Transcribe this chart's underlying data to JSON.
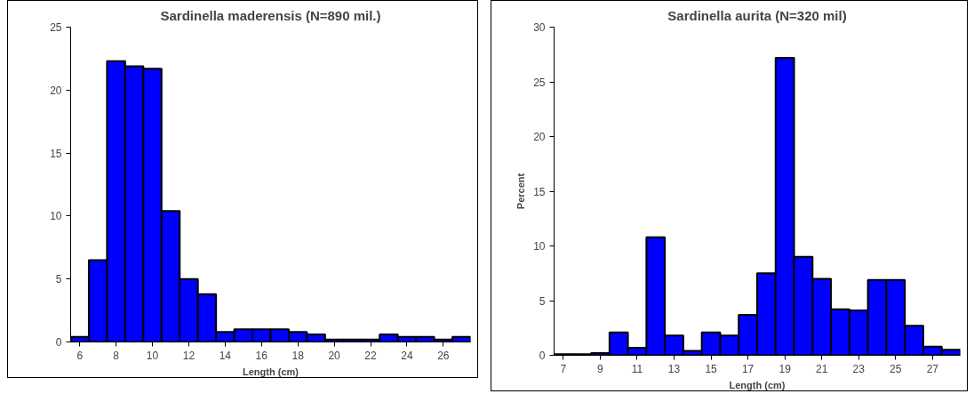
{
  "chart_data": [
    {
      "type": "histogram",
      "title": "Sardinella maderensis (N=890 mil.)",
      "xlabel": "Length (cm)",
      "color": "#0000ff",
      "bins": [
        5.5,
        6.5,
        7.5,
        8.5,
        9.5,
        10.5,
        11.5,
        12.5,
        13.5,
        14.5,
        15.5,
        16.5,
        17.5,
        18.5,
        19.5,
        20.5,
        21.5,
        22.5,
        23.5,
        24.5,
        25.5,
        26.5,
        27.5
      ],
      "values": [
        0.4,
        6.5,
        22.3,
        21.9,
        21.7,
        10.4,
        5.0,
        3.8,
        0.8,
        1.0,
        1.0,
        1.0,
        0.8,
        0.6,
        0.2,
        0.2,
        0.2,
        0.6,
        0.4,
        0.4,
        0.2,
        0.4
      ],
      "xlim": [
        5.5,
        27.5
      ],
      "xticks": [
        6,
        8,
        10,
        12,
        14,
        16,
        18,
        20,
        22,
        24,
        26
      ],
      "ylim": [
        0,
        25
      ],
      "yticks": [
        0,
        5,
        10,
        15,
        20,
        25
      ],
      "grid": false,
      "legend": false
    },
    {
      "type": "histogram",
      "title": "Sardinella aurita (N=320 mil)",
      "xlabel": "Length (cm)",
      "ylabel": "Percent",
      "color": "#0000ff",
      "bins": [
        6.5,
        7.5,
        8.5,
        9.5,
        10.5,
        11.5,
        12.5,
        13.5,
        14.5,
        15.5,
        16.5,
        17.5,
        18.5,
        19.5,
        20.5,
        21.5,
        22.5,
        23.5,
        24.5,
        25.5,
        26.5,
        27.5,
        28.5
      ],
      "values": [
        0.1,
        0.1,
        0.2,
        2.1,
        0.7,
        10.8,
        1.8,
        0.4,
        2.1,
        1.8,
        3.7,
        7.5,
        27.2,
        9.0,
        7.0,
        4.2,
        4.1,
        6.9,
        6.9,
        2.7,
        0.8,
        0.5
      ],
      "xlim": [
        6.5,
        28.5
      ],
      "xticks": [
        7,
        9,
        11,
        13,
        15,
        17,
        19,
        21,
        23,
        25,
        27
      ],
      "ylim": [
        0,
        30
      ],
      "yticks": [
        0,
        5,
        10,
        15,
        20,
        25,
        30
      ],
      "grid": false,
      "legend": false
    }
  ]
}
